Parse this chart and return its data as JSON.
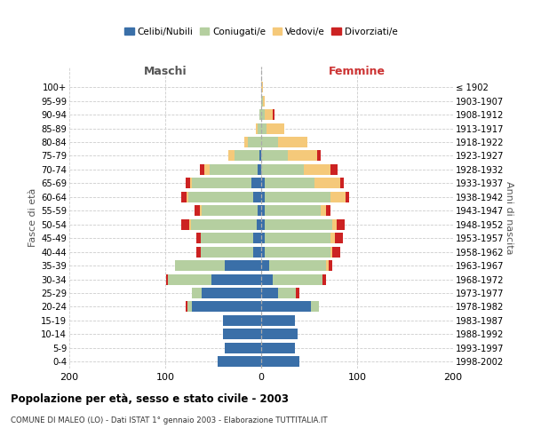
{
  "age_groups": [
    "0-4",
    "5-9",
    "10-14",
    "15-19",
    "20-24",
    "25-29",
    "30-34",
    "35-39",
    "40-44",
    "45-49",
    "50-54",
    "55-59",
    "60-64",
    "65-69",
    "70-74",
    "75-79",
    "80-84",
    "85-89",
    "90-94",
    "95-99",
    "100+"
  ],
  "birth_years": [
    "1998-2002",
    "1993-1997",
    "1988-1992",
    "1983-1987",
    "1978-1982",
    "1973-1977",
    "1968-1972",
    "1963-1967",
    "1958-1962",
    "1953-1957",
    "1948-1952",
    "1943-1947",
    "1938-1942",
    "1933-1937",
    "1928-1932",
    "1923-1927",
    "1918-1922",
    "1913-1917",
    "1908-1912",
    "1903-1907",
    "≤ 1902"
  ],
  "maschi": {
    "celibi": [
      45,
      38,
      40,
      40,
      72,
      62,
      52,
      38,
      8,
      8,
      5,
      4,
      8,
      10,
      4,
      2,
      0,
      0,
      0,
      0,
      0
    ],
    "coniugati": [
      0,
      0,
      0,
      0,
      5,
      10,
      45,
      52,
      55,
      55,
      68,
      58,
      68,
      62,
      50,
      26,
      14,
      4,
      2,
      0,
      0
    ],
    "vedovi": [
      0,
      0,
      0,
      0,
      0,
      0,
      0,
      0,
      0,
      0,
      2,
      2,
      2,
      2,
      5,
      6,
      4,
      2,
      0,
      0,
      0
    ],
    "divorziati": [
      0,
      0,
      0,
      0,
      2,
      0,
      2,
      0,
      5,
      5,
      8,
      5,
      5,
      5,
      5,
      0,
      0,
      0,
      0,
      0,
      0
    ]
  },
  "femmine": {
    "nubili": [
      40,
      35,
      38,
      35,
      52,
      18,
      12,
      8,
      4,
      4,
      4,
      4,
      4,
      4,
      0,
      0,
      0,
      0,
      0,
      0,
      0
    ],
    "coniugate": [
      0,
      0,
      0,
      0,
      8,
      18,
      52,
      60,
      68,
      68,
      70,
      58,
      68,
      52,
      44,
      28,
      18,
      6,
      4,
      2,
      0
    ],
    "vedove": [
      0,
      0,
      0,
      0,
      0,
      0,
      0,
      2,
      2,
      5,
      5,
      6,
      16,
      26,
      28,
      30,
      30,
      18,
      8,
      2,
      2
    ],
    "divorziate": [
      0,
      0,
      0,
      0,
      0,
      4,
      4,
      4,
      8,
      8,
      8,
      4,
      4,
      4,
      8,
      4,
      0,
      0,
      2,
      0,
      0
    ]
  },
  "colors": {
    "celibi": "#3a6fa8",
    "coniugati": "#b5cfa0",
    "vedovi": "#f5c97a",
    "divorziati": "#cc2222"
  },
  "title": "Popolazione per età, sesso e stato civile - 2003",
  "subtitle": "COMUNE DI MALEO (LO) - Dati ISTAT 1° gennaio 2003 - Elaborazione TUTTITALIA.IT",
  "xlabel_left": "Maschi",
  "xlabel_right": "Femmine",
  "ylabel_left": "Fasce di età",
  "ylabel_right": "Anni di nascita",
  "xlim": 200,
  "bg_color": "#ffffff",
  "grid_color": "#cccccc"
}
